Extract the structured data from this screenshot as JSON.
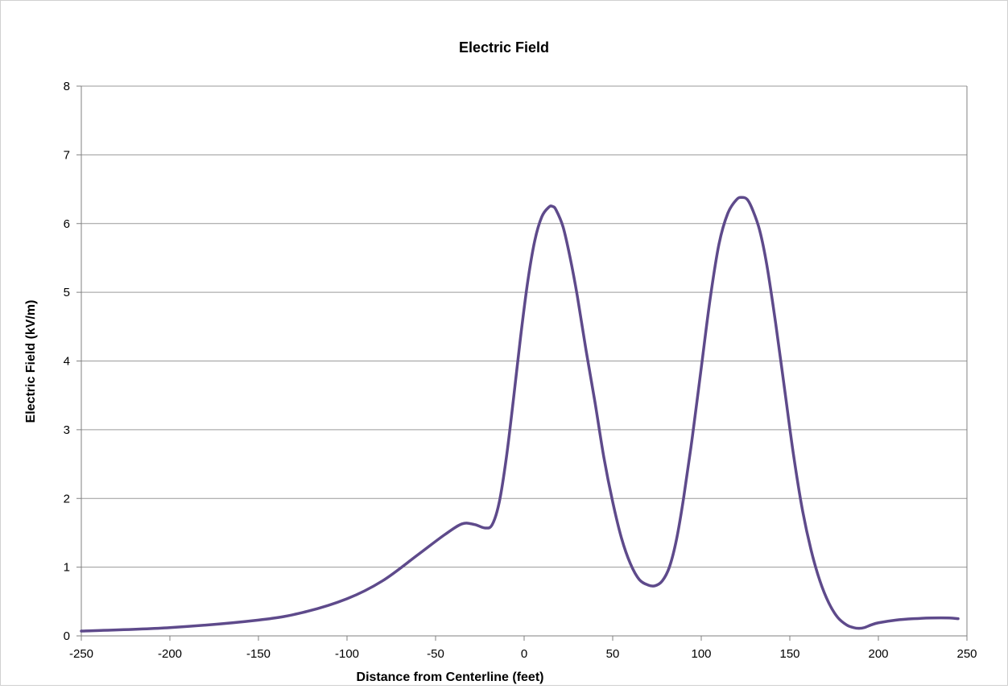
{
  "chart_data": {
    "type": "line",
    "title": "Electric Field",
    "xlabel": "Distance from Centerline (feet)",
    "ylabel": "Electric Field (kV/m)",
    "xlim": [
      -250,
      250
    ],
    "ylim": [
      0,
      8
    ],
    "x_ticks": [
      -250,
      -200,
      -150,
      -100,
      -50,
      0,
      50,
      100,
      150,
      200,
      250
    ],
    "y_ticks": [
      0,
      1,
      2,
      3,
      4,
      5,
      6,
      7,
      8
    ],
    "grid": "horizontal",
    "legend": "none",
    "line_color": "#5e4a8b",
    "series": [
      {
        "x": [
          -250,
          -200,
          -150,
          -125,
          -100,
          -80,
          -60,
          -45,
          -35,
          -28,
          -22,
          -18,
          -14,
          -10,
          -6,
          -2,
          2,
          6,
          10,
          14,
          16,
          18,
          22,
          26,
          30,
          35,
          40,
          45,
          50,
          55,
          60,
          65,
          70,
          74,
          78,
          82,
          86,
          90,
          95,
          100,
          105,
          110,
          115,
          120,
          123,
          126,
          129,
          133,
          137,
          142,
          147,
          152,
          157,
          162,
          167,
          172,
          177,
          182,
          186,
          189,
          192,
          196,
          200,
          210,
          220,
          230,
          240,
          245
        ],
        "y": [
          0.07,
          0.12,
          0.23,
          0.34,
          0.54,
          0.8,
          1.18,
          1.47,
          1.63,
          1.62,
          1.57,
          1.62,
          1.95,
          2.6,
          3.45,
          4.35,
          5.15,
          5.75,
          6.1,
          6.24,
          6.25,
          6.2,
          5.95,
          5.5,
          4.95,
          4.15,
          3.4,
          2.6,
          1.95,
          1.42,
          1.05,
          0.82,
          0.74,
          0.73,
          0.8,
          1.0,
          1.4,
          2.0,
          2.9,
          3.9,
          4.9,
          5.7,
          6.15,
          6.35,
          6.38,
          6.35,
          6.2,
          5.9,
          5.4,
          4.55,
          3.6,
          2.65,
          1.85,
          1.25,
          0.8,
          0.48,
          0.27,
          0.16,
          0.12,
          0.11,
          0.12,
          0.16,
          0.19,
          0.23,
          0.25,
          0.26,
          0.26,
          0.25
        ]
      }
    ]
  }
}
